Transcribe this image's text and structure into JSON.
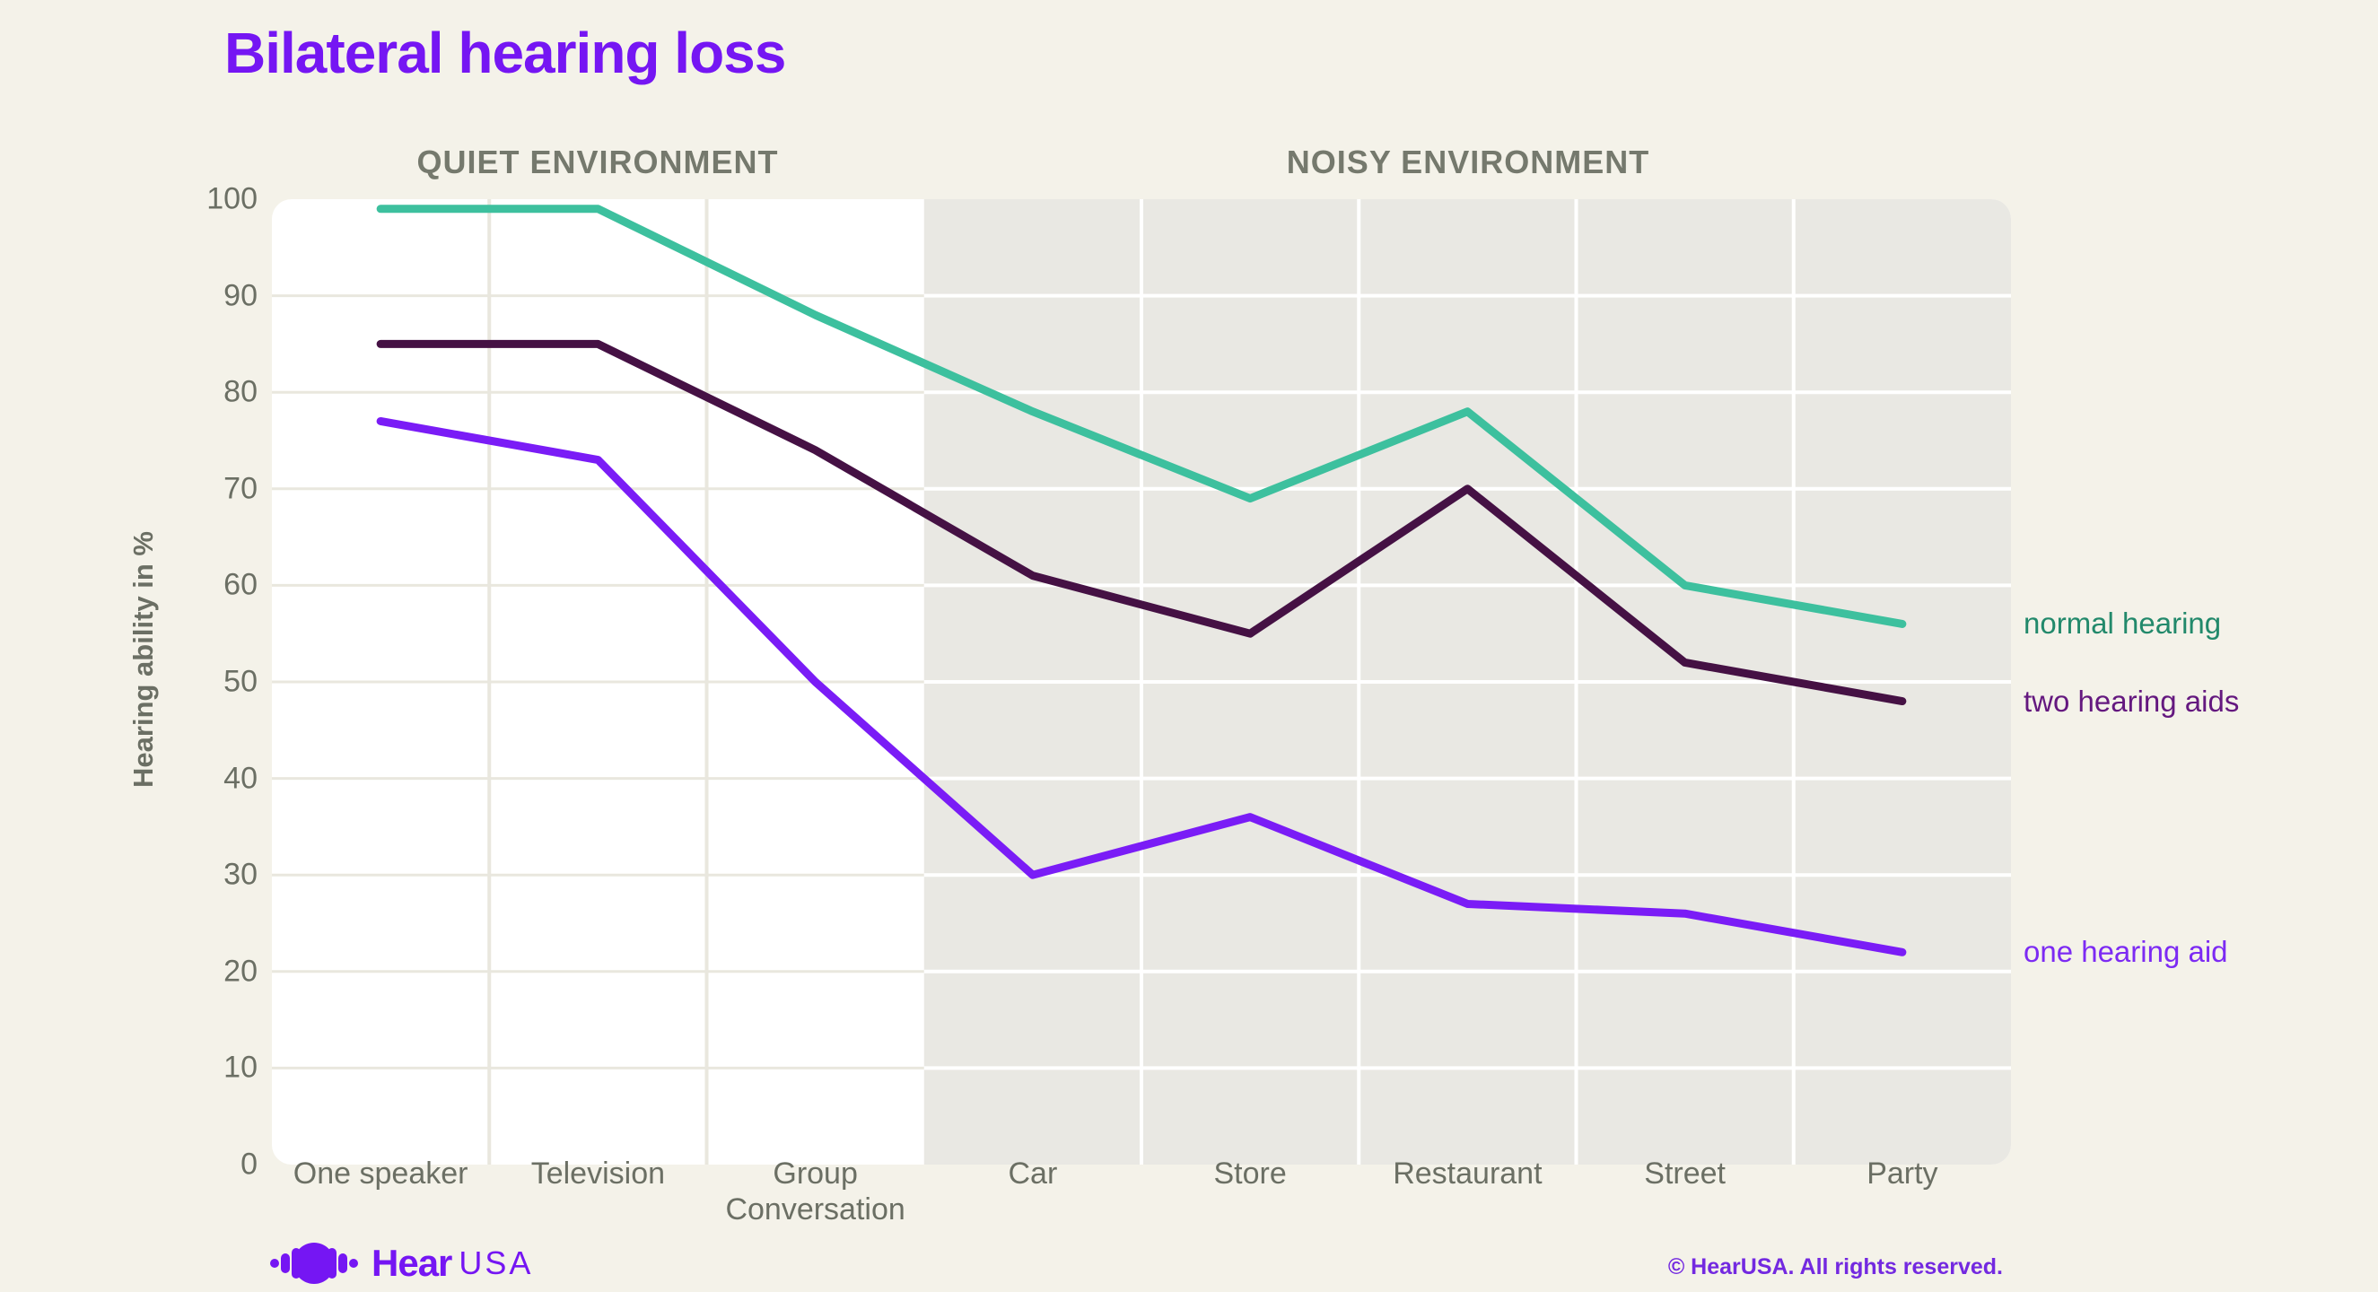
{
  "title": "Bilateral hearing loss",
  "y_axis": {
    "title": "Hearing ability in %",
    "ticks": [
      0,
      10,
      20,
      30,
      40,
      50,
      60,
      70,
      80,
      90,
      100
    ]
  },
  "chart_data": {
    "type": "line",
    "title": "Bilateral hearing loss",
    "categories": [
      "One speaker",
      "Television",
      "Group Conversation",
      "Car",
      "Store",
      "Restaurant",
      "Street",
      "Party"
    ],
    "series": [
      {
        "name": "normal hearing",
        "color": "#3dc09e",
        "label_color": "#22896b",
        "values": [
          99,
          99,
          88,
          78,
          69,
          78,
          60,
          56
        ]
      },
      {
        "name": "two hearing aids",
        "color": "#451144",
        "label_color": "#64187f",
        "values": [
          85,
          85,
          74,
          61,
          55,
          70,
          52,
          48
        ]
      },
      {
        "name": "one hearing aid",
        "color": "#7a1cf6",
        "label_color": "#7c2af3",
        "values": [
          77,
          73,
          50,
          30,
          36,
          27,
          26,
          22
        ]
      }
    ],
    "sections": [
      {
        "label": "QUIET ENVIRONMENT",
        "categories": [
          "One speaker",
          "Television",
          "Group Conversation"
        ]
      },
      {
        "label": "NOISY ENVIRONMENT",
        "categories": [
          "Car",
          "Store",
          "Restaurant",
          "Street",
          "Party"
        ]
      }
    ],
    "xlabel": "",
    "ylabel": "Hearing ability in %",
    "ylim": [
      0,
      100
    ],
    "grid": true,
    "legend_position": "right"
  },
  "colors": {
    "page_background": "#f4f2e9",
    "plot_quiet_background": "#ffffff",
    "plot_noisy_background": "#e9e8e3",
    "grid_quiet": "#e9e7de",
    "grid_noisy": "#ffffff",
    "title": "#7516f3",
    "section_header": "#75796d",
    "axis_text": "#6b6f64"
  },
  "footer": {
    "logo_text_bold": "Hear",
    "logo_text_light": "USA",
    "copyright": "© HearUSA. All rights reserved."
  }
}
